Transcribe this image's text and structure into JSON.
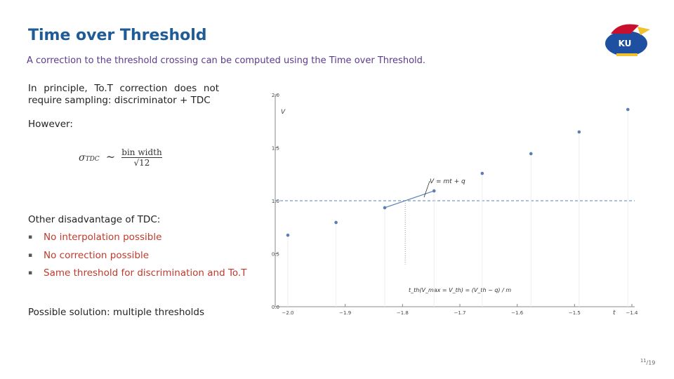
{
  "header": {
    "title": "Time over Threshold",
    "subtitle": "A correction to the threshold crossing can be computed using the Time over Threshold."
  },
  "body": {
    "intro": "In principle, To.T correction does not require sampling: discriminator + TDC",
    "however": "However:",
    "formula": {
      "symbol": "σ",
      "subscript": "TDC",
      "relation": "~",
      "numerator": "bin width",
      "denominator": "√12"
    },
    "disadvantage": "Other disadvantage of TDC:",
    "bullets": [
      "No interpolation possible",
      "No correction possible",
      "Same threshold for discrimination and To.T"
    ],
    "solution": "Possible solution: multiple thresholds"
  },
  "logo_text": "KU",
  "page": {
    "current": "11",
    "total": "19"
  },
  "chart_data": {
    "type": "scatter",
    "x_label": "t",
    "y_label": "V",
    "x": [
      -2.0,
      -1.916,
      -1.831,
      -1.745,
      -1.661,
      -1.576,
      -1.492,
      -1.407
    ],
    "values": [
      0.675,
      0.795,
      0.934,
      1.093,
      1.258,
      1.444,
      1.649,
      1.861
    ],
    "color": "#5b7fb5",
    "threshold": 1.0,
    "fit_label": "V = mt + q",
    "crossing_label": "t_th(V_max = V_th) = (V_th − q) / m",
    "xlim": [
      -2.0,
      -1.4
    ],
    "ylim": [
      0,
      2.0
    ],
    "xticks": [
      {
        "value": -2.0,
        "label": "−2.0"
      },
      {
        "value": -1.9,
        "label": "−1.9"
      },
      {
        "value": -1.8,
        "label": "−1.8"
      },
      {
        "value": -1.7,
        "label": "−1.7"
      },
      {
        "value": -1.6,
        "label": "−1.6"
      },
      {
        "value": -1.5,
        "label": "−1.5"
      },
      {
        "value": -1.4,
        "label": "−1.4"
      }
    ],
    "yticks": [
      {
        "value": 0,
        "label": "0.0"
      },
      0.5,
      {
        "value": 1.0,
        "label": "1.0"
      },
      1.5,
      {
        "value": 2.0,
        "label": "2.0"
      }
    ]
  }
}
